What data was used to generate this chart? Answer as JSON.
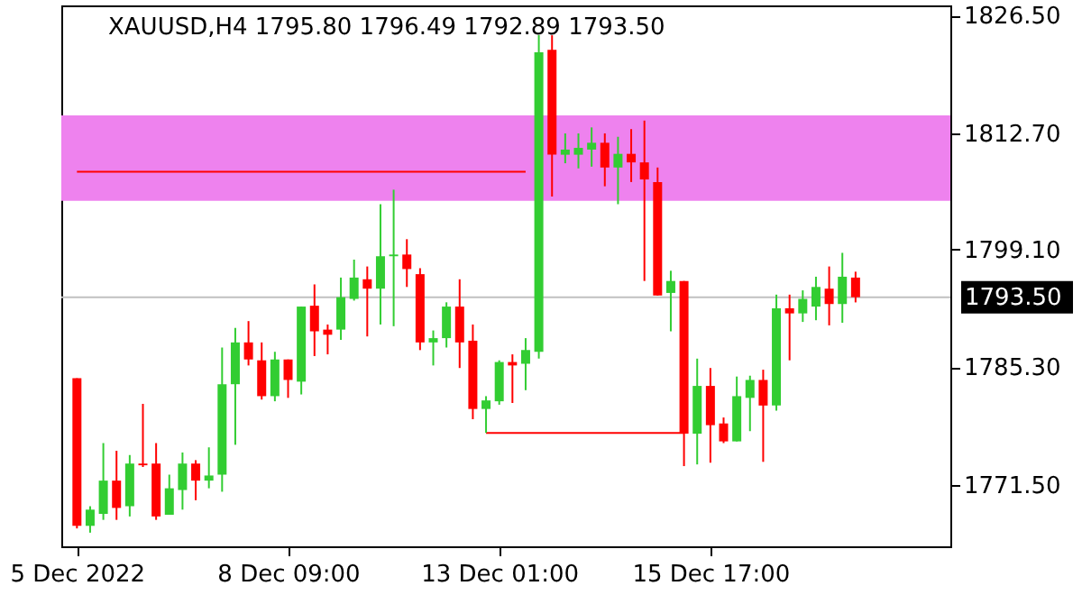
{
  "chart_data": {
    "type": "candlestick",
    "title": "XAUUSD,H4  1795.80 1796.49 1792.89 1793.50",
    "categories": [
      "5 Dec 2022",
      null,
      null,
      null,
      null,
      null,
      null,
      null,
      null,
      null,
      null,
      null,
      null,
      null,
      null,
      null,
      "8 Dec 09:00",
      null,
      null,
      null,
      null,
      null,
      null,
      null,
      null,
      null,
      null,
      null,
      null,
      null,
      null,
      null,
      "13 Dec 01:00",
      null,
      null,
      null,
      null,
      null,
      null,
      null,
      null,
      null,
      null,
      null,
      null,
      null,
      null,
      null,
      "15 Dec 17:00",
      null,
      null,
      null,
      null,
      null,
      null,
      null,
      null,
      null,
      null,
      null,
      null,
      null,
      null,
      null,
      null,
      null
    ],
    "ohlc": [
      [
        1784.0,
        1784.0,
        1766.4,
        1766.7
      ],
      [
        1766.7,
        1769.0,
        1765.9,
        1768.6
      ],
      [
        1768.1,
        1776.4,
        1767.4,
        1772.0
      ],
      [
        1772.0,
        1775.5,
        1767.4,
        1768.8
      ],
      [
        1769.0,
        1775.0,
        1767.8,
        1774.0
      ],
      [
        1774.0,
        1781.0,
        1773.6,
        1773.8
      ],
      [
        1774.0,
        1776.4,
        1767.4,
        1767.8
      ],
      [
        1768.0,
        1772.7,
        1768.0,
        1771.1
      ],
      [
        1770.9,
        1775.3,
        1768.6,
        1774.0
      ],
      [
        1774.0,
        1774.4,
        1769.7,
        1772.0
      ],
      [
        1772.0,
        1775.9,
        1771.1,
        1772.6
      ],
      [
        1772.7,
        1787.6,
        1770.7,
        1783.3
      ],
      [
        1783.3,
        1789.9,
        1776.2,
        1788.2
      ],
      [
        1788.2,
        1790.7,
        1785.5,
        1786.2
      ],
      [
        1786.1,
        1788.2,
        1781.5,
        1781.9
      ],
      [
        1781.9,
        1787.1,
        1781.3,
        1786.2
      ],
      [
        1786.2,
        1786.2,
        1781.7,
        1783.8
      ],
      [
        1783.6,
        1792.4,
        1782.1,
        1792.4
      ],
      [
        1792.5,
        1795.0,
        1786.6,
        1789.5
      ],
      [
        1789.7,
        1790.3,
        1786.8,
        1789.1
      ],
      [
        1789.7,
        1795.8,
        1788.5,
        1793.5
      ],
      [
        1793.3,
        1797.9,
        1793.1,
        1795.8
      ],
      [
        1795.6,
        1797.1,
        1788.9,
        1794.5
      ],
      [
        1794.5,
        1804.4,
        1790.3,
        1798.3
      ],
      [
        1798.3,
        1806.1,
        1790.1,
        1798.5
      ],
      [
        1798.5,
        1800.3,
        1794.7,
        1796.8
      ],
      [
        1796.2,
        1796.9,
        1787.3,
        1788.2
      ],
      [
        1788.2,
        1789.6,
        1785.5,
        1788.7
      ],
      [
        1788.7,
        1792.9,
        1787.6,
        1792.4
      ],
      [
        1792.4,
        1795.6,
        1785.2,
        1788.2
      ],
      [
        1788.4,
        1790.3,
        1779.2,
        1780.4
      ],
      [
        1780.4,
        1781.9,
        1777.6,
        1781.4
      ],
      [
        1781.3,
        1786.1,
        1780.9,
        1785.9
      ],
      [
        1785.9,
        1786.8,
        1781.1,
        1785.5
      ],
      [
        1785.7,
        1788.7,
        1782.6,
        1787.3
      ],
      [
        1787.1,
        1824.2,
        1786.3,
        1822.2
      ],
      [
        1822.5,
        1824.2,
        1805.3,
        1810.2
      ],
      [
        1810.2,
        1812.7,
        1809.2,
        1810.8
      ],
      [
        1810.2,
        1812.7,
        1808.6,
        1811.0
      ],
      [
        1810.8,
        1813.4,
        1808.8,
        1811.6
      ],
      [
        1811.6,
        1812.7,
        1806.5,
        1808.7
      ],
      [
        1808.7,
        1812.3,
        1804.4,
        1810.3
      ],
      [
        1810.3,
        1813.2,
        1807.0,
        1809.3
      ],
      [
        1809.3,
        1814.2,
        1795.4,
        1807.3
      ],
      [
        1807.0,
        1808.7,
        1793.7,
        1793.7
      ],
      [
        1794.0,
        1796.6,
        1789.5,
        1795.4
      ],
      [
        1795.4,
        1795.4,
        1773.7,
        1777.5
      ],
      [
        1777.5,
        1786.3,
        1773.9,
        1783.1
      ],
      [
        1783.1,
        1785.2,
        1774.1,
        1778.5
      ],
      [
        1778.7,
        1779.4,
        1776.4,
        1776.6
      ],
      [
        1776.6,
        1784.2,
        1776.6,
        1781.9
      ],
      [
        1781.7,
        1784.3,
        1777.8,
        1783.8
      ],
      [
        1783.8,
        1785.0,
        1774.2,
        1780.8
      ],
      [
        1780.8,
        1793.8,
        1780.2,
        1792.2
      ],
      [
        1792.2,
        1793.8,
        1786.1,
        1791.6
      ],
      [
        1791.6,
        1794.3,
        1790.6,
        1793.3
      ],
      [
        1792.4,
        1795.9,
        1790.8,
        1794.7
      ],
      [
        1794.5,
        1797.1,
        1790.2,
        1792.7
      ],
      [
        1792.7,
        1798.7,
        1790.5,
        1795.9
      ],
      [
        1795.8,
        1796.49,
        1792.89,
        1793.5
      ],
      null,
      null,
      null,
      null,
      null,
      null
    ],
    "colors": [
      "#ff0000",
      "#32cd32",
      "#32cd32",
      "#ff0000",
      "#32cd32",
      "#ff0000",
      "#ff0000",
      "#32cd32",
      "#32cd32",
      "#ff0000",
      "#32cd32",
      "#32cd32",
      "#32cd32",
      "#ff0000",
      "#ff0000",
      "#32cd32",
      "#ff0000",
      "#32cd32",
      "#ff0000",
      "#ff0000",
      "#32cd32",
      "#32cd32",
      "#ff0000",
      "#32cd32",
      "#32cd32",
      "#ff0000",
      "#ff0000",
      "#32cd32",
      "#32cd32",
      "#ff0000",
      "#ff0000",
      "#32cd32",
      "#32cd32",
      "#ff0000",
      "#32cd32",
      "#32cd32",
      "#ff0000",
      "#32cd32",
      "#32cd32",
      "#32cd32",
      "#ff0000",
      "#32cd32",
      "#ff0000",
      "#ff0000",
      "#ff0000",
      "#32cd32",
      "#ff0000",
      "#32cd32",
      "#ff0000",
      "#ff0000",
      "#32cd32",
      "#32cd32",
      "#ff0000",
      "#32cd32",
      "#ff0000",
      "#32cd32",
      "#32cd32",
      "#ff0000",
      "#32cd32",
      "#ff0000",
      null,
      null,
      null,
      null,
      null,
      null
    ],
    "series": [
      {
        "type": "line",
        "color": "#ff0000",
        "values": [
          1808.2,
          1808.2,
          1808.2,
          1808.2,
          1808.2,
          1808.2,
          1808.2,
          1808.2,
          1808.2,
          1808.2,
          1808.2,
          1808.2,
          1808.2,
          1808.2,
          1808.2,
          1808.2,
          1808.2,
          1808.2,
          1808.2,
          1808.2,
          1808.2,
          1808.2,
          1808.2,
          1808.2,
          1808.2,
          1808.2,
          1808.2,
          1808.2,
          1808.2,
          1808.2,
          1808.2,
          1808.2,
          1808.2,
          1808.2,
          1808.2,
          null,
          null,
          null,
          null,
          null,
          null,
          null,
          null,
          null,
          null,
          null,
          null,
          null,
          null,
          null,
          null,
          null,
          null,
          null,
          null,
          null,
          null,
          null,
          null,
          null,
          null,
          null,
          null,
          null,
          null,
          null
        ]
      },
      {
        "type": "line",
        "color": "#ff0000",
        "values": [
          null,
          null,
          null,
          null,
          null,
          null,
          null,
          null,
          null,
          null,
          null,
          null,
          null,
          null,
          null,
          null,
          null,
          null,
          null,
          null,
          null,
          null,
          null,
          null,
          null,
          null,
          null,
          null,
          null,
          null,
          null,
          1777.6,
          1777.6,
          1777.6,
          1777.6,
          1777.6,
          1777.6,
          1777.6,
          1777.6,
          1777.6,
          1777.6,
          1777.6,
          1777.6,
          1777.6,
          1777.6,
          1777.6,
          1777.6,
          null,
          null,
          null,
          null,
          null,
          null,
          null,
          null,
          null,
          null,
          null,
          null,
          null,
          null,
          null,
          null,
          null,
          null,
          null
        ]
      }
    ],
    "bands": [
      {
        "axis": "y",
        "from": 1804.8,
        "to": 1814.8,
        "color": "#ee82ee"
      }
    ],
    "ref_lines": [
      {
        "axis": "y",
        "value": 1793.5,
        "label": "1793.50",
        "color": "#c0c0c0"
      }
    ],
    "ylim": [
      1764.3,
      1827.7
    ],
    "yticks": [
      {
        "value": 1771.5,
        "label": "1771.50"
      },
      {
        "value": 1785.3,
        "label": "1785.30"
      },
      {
        "value": 1799.1,
        "label": "1799.10"
      },
      {
        "value": 1812.7,
        "label": "1812.70"
      },
      {
        "value": 1826.5,
        "label": "1826.50"
      }
    ],
    "grid": false
  }
}
